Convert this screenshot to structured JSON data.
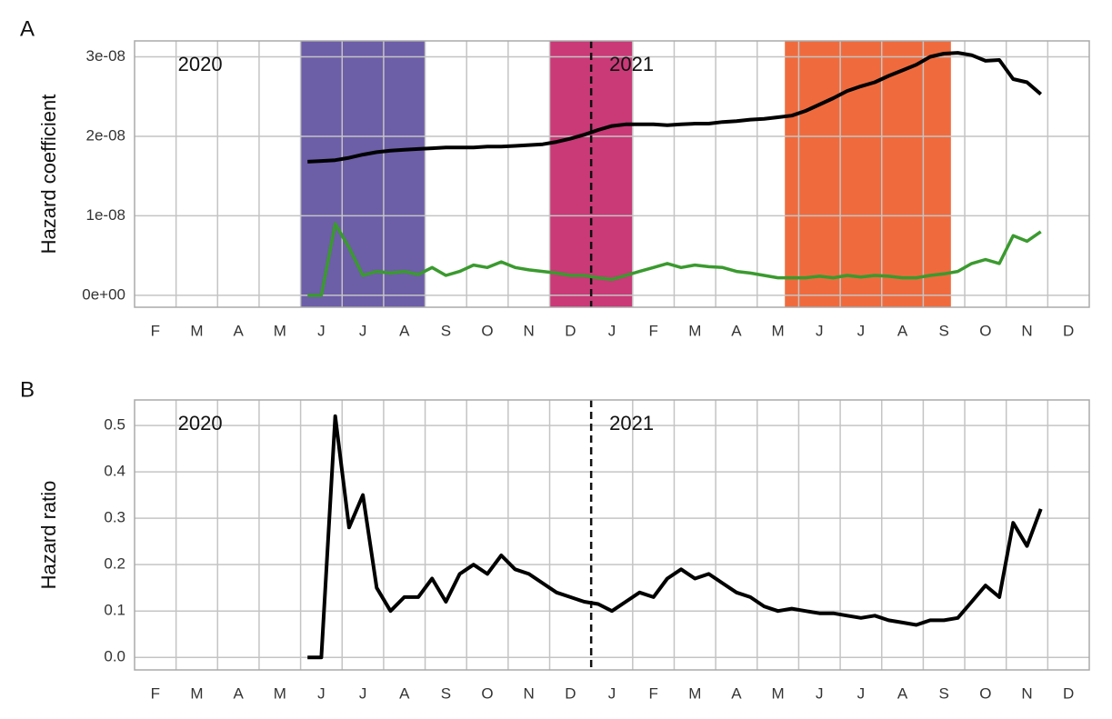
{
  "chart_data": [
    {
      "type": "line",
      "panel": "A",
      "ylabel": "Hazard coefficient",
      "annotations": [
        "2020",
        "2021"
      ],
      "categories": [
        null,
        "F",
        null,
        null,
        "M",
        null,
        null,
        "A",
        null,
        null,
        "M",
        null,
        null,
        "J",
        null,
        null,
        "J",
        null,
        null,
        "A",
        null,
        null,
        "S",
        null,
        null,
        "O",
        null,
        null,
        "N",
        null,
        null,
        "D",
        null,
        null,
        "J",
        null,
        null,
        "F",
        null,
        null,
        "M",
        null,
        null,
        "A",
        null,
        null,
        "M",
        null,
        null,
        "J",
        null,
        null,
        "J",
        null,
        null,
        "A",
        null,
        null,
        "S",
        null,
        null,
        "O",
        null,
        null,
        "N",
        null,
        null,
        "D",
        null
      ],
      "ylim": [
        -1.5e-09,
        3.2e-08
      ],
      "yticks": [
        {
          "value": 0,
          "label": "0e+00"
        },
        {
          "value": 1e-08,
          "label": "1e-08"
        },
        {
          "value": 2e-08,
          "label": "2e-08"
        },
        {
          "value": 3e-08,
          "label": "3e-08"
        }
      ],
      "grid": true,
      "highlights": [
        {
          "from": 12,
          "to": 20,
          "color": "#6d5ea8"
        },
        {
          "from": 30,
          "to": 35,
          "color": "#c93a77"
        },
        {
          "from": 47,
          "to": 58,
          "color": "#ef6b3d"
        }
      ],
      "vline": 33,
      "series": [
        {
          "color": "#000000",
          "values": [
            null,
            null,
            null,
            null,
            null,
            null,
            null,
            null,
            null,
            null,
            null,
            null,
            1.68e-08,
            1.69e-08,
            1.7e-08,
            1.73e-08,
            1.77e-08,
            1.8e-08,
            1.82e-08,
            1.83e-08,
            1.84e-08,
            1.85e-08,
            1.86e-08,
            1.86e-08,
            1.86e-08,
            1.87e-08,
            1.87e-08,
            1.88e-08,
            1.89e-08,
            1.9e-08,
            1.93e-08,
            1.97e-08,
            2.02e-08,
            2.08e-08,
            2.13e-08,
            2.15e-08,
            2.15e-08,
            2.15e-08,
            2.14e-08,
            2.15e-08,
            2.16e-08,
            2.16e-08,
            2.18e-08,
            2.19e-08,
            2.21e-08,
            2.22e-08,
            2.24e-08,
            2.26e-08,
            2.32e-08,
            2.4e-08,
            2.48e-08,
            2.57e-08,
            2.63e-08,
            2.68e-08,
            2.76e-08,
            2.83e-08,
            2.9e-08,
            3e-08,
            3.04e-08,
            3.05e-08,
            3.02e-08,
            2.95e-08,
            2.96e-08,
            2.72e-08,
            2.68e-08,
            2.53e-08,
            null,
            null,
            null
          ]
        },
        {
          "color": "#3a9a2e",
          "values": [
            null,
            null,
            null,
            null,
            null,
            null,
            null,
            null,
            null,
            null,
            null,
            null,
            0,
            0,
            9e-09,
            6e-09,
            2.5e-09,
            3e-09,
            2.8e-09,
            3e-09,
            2.6e-09,
            3.5e-09,
            2.5e-09,
            3e-09,
            3.8e-09,
            3.5e-09,
            4.2e-09,
            3.5e-09,
            3.2e-09,
            3e-09,
            2.8e-09,
            2.5e-09,
            2.5e-09,
            2.2e-09,
            2e-09,
            2.5e-09,
            3e-09,
            3.5e-09,
            4e-09,
            3.5e-09,
            3.8e-09,
            3.6e-09,
            3.5e-09,
            3e-09,
            2.8e-09,
            2.5e-09,
            2.2e-09,
            2.2e-09,
            2.2e-09,
            2.4e-09,
            2.2e-09,
            2.5e-09,
            2.3e-09,
            2.5e-09,
            2.4e-09,
            2.2e-09,
            2.2e-09,
            2.5e-09,
            2.7e-09,
            3e-09,
            4e-09,
            4.5e-09,
            4e-09,
            7.5e-09,
            6.8e-09,
            8e-09,
            null,
            null,
            null
          ]
        }
      ]
    },
    {
      "type": "line",
      "panel": "B",
      "ylabel": "Hazard ratio",
      "annotations": [
        "2020",
        "2021"
      ],
      "categories": [
        null,
        "F",
        null,
        null,
        "M",
        null,
        null,
        "A",
        null,
        null,
        "M",
        null,
        null,
        "J",
        null,
        null,
        "J",
        null,
        null,
        "A",
        null,
        null,
        "S",
        null,
        null,
        "O",
        null,
        null,
        "N",
        null,
        null,
        "D",
        null,
        null,
        "J",
        null,
        null,
        "F",
        null,
        null,
        "M",
        null,
        null,
        "A",
        null,
        null,
        "M",
        null,
        null,
        "J",
        null,
        null,
        "J",
        null,
        null,
        "A",
        null,
        null,
        "S",
        null,
        null,
        "O",
        null,
        null,
        "N",
        null,
        null,
        "D",
        null
      ],
      "ylim": [
        -0.027,
        0.555
      ],
      "yticks": [
        {
          "value": 0,
          "label": "0.0"
        },
        0.1,
        0.2,
        0.3,
        0.4,
        0.5
      ],
      "grid": true,
      "highlights": [],
      "vline": 33,
      "series": [
        {
          "color": "#000000",
          "values": [
            null,
            null,
            null,
            null,
            null,
            null,
            null,
            null,
            null,
            null,
            null,
            null,
            0,
            0,
            0.52,
            0.28,
            0.35,
            0.15,
            0.1,
            0.13,
            0.13,
            0.17,
            0.12,
            0.18,
            0.2,
            0.18,
            0.22,
            0.19,
            0.18,
            0.16,
            0.14,
            0.13,
            0.12,
            0.115,
            0.1,
            0.12,
            0.14,
            0.13,
            0.17,
            0.19,
            0.17,
            0.18,
            0.16,
            0.14,
            0.13,
            0.11,
            0.1,
            0.105,
            0.1,
            0.095,
            0.095,
            0.09,
            0.085,
            0.09,
            0.08,
            0.075,
            0.07,
            0.08,
            0.08,
            0.085,
            0.12,
            0.155,
            0.13,
            0.29,
            0.24,
            0.32,
            null,
            null,
            null
          ]
        }
      ]
    }
  ]
}
